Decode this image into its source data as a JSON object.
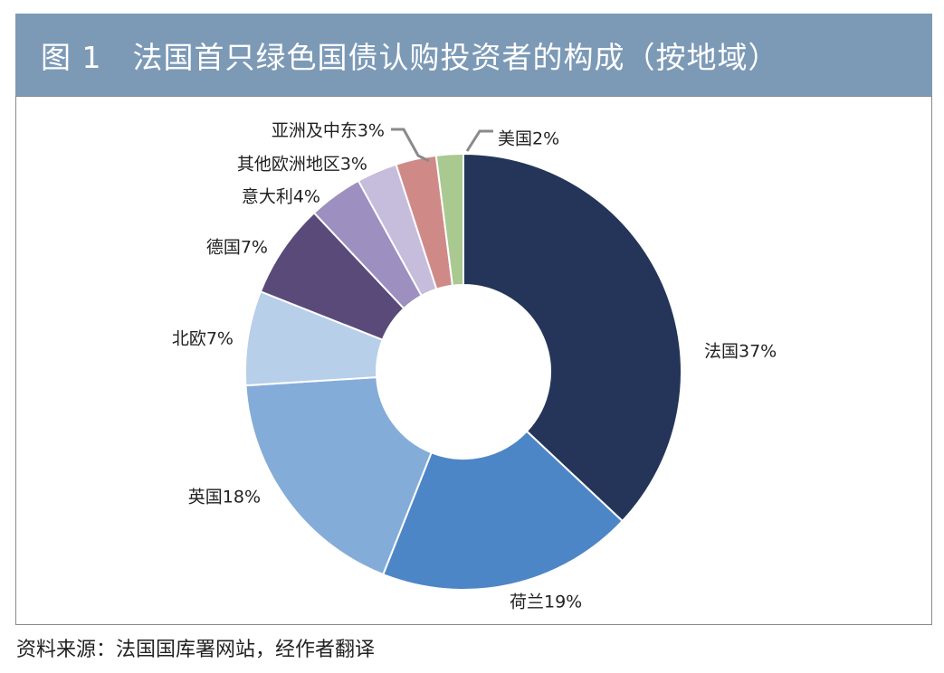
{
  "title": "图 1　法国首只绿色国债认购投资者的构成（按地域）",
  "source": "资料来源：法国国库署网站，经作者翻译",
  "chart_data": {
    "type": "pie",
    "donut": true,
    "title": "图 1　法国首只绿色国债认购投资者的构成（按地域）",
    "unit": "%",
    "slices": [
      {
        "name": "法国",
        "value": 37,
        "label": "法国37%",
        "color": "#243559"
      },
      {
        "name": "荷兰",
        "value": 19,
        "label": "荷兰19%",
        "color": "#4d86c6"
      },
      {
        "name": "英国",
        "value": 18,
        "label": "英国18%",
        "color": "#84acd8"
      },
      {
        "name": "北欧",
        "value": 7,
        "label": "北欧7%",
        "color": "#b7cfe8"
      },
      {
        "name": "德国",
        "value": 7,
        "label": "德国7%",
        "color": "#5a4a7a"
      },
      {
        "name": "意大利",
        "value": 4,
        "label": "意大利4%",
        "color": "#9d8fbf"
      },
      {
        "name": "其他欧洲地区",
        "value": 3,
        "label": "其他欧洲地区3%",
        "color": "#c6bcdb"
      },
      {
        "name": "亚洲及中东",
        "value": 3,
        "label": "亚洲及中东3%",
        "color": "#cf8a88"
      },
      {
        "name": "美国",
        "value": 2,
        "label": "美国2%",
        "color": "#a9c991"
      }
    ]
  }
}
